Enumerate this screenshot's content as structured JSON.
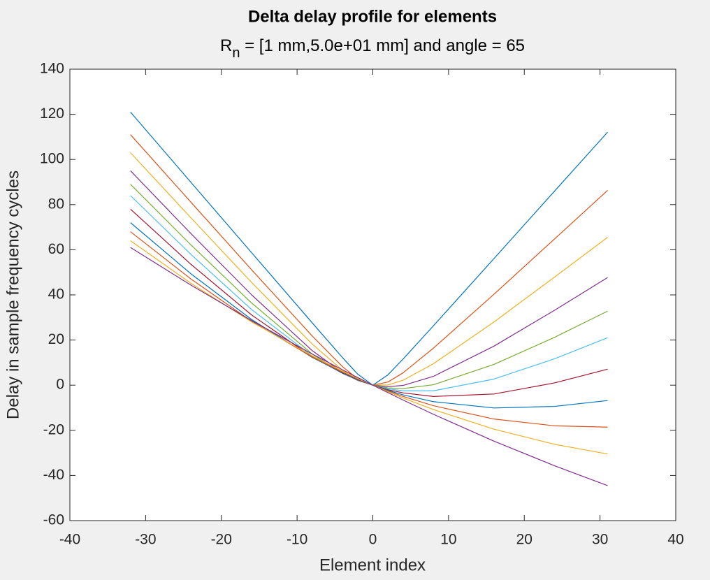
{
  "chart_data": {
    "type": "line",
    "title": "Delta delay profile for elements",
    "subtitle": [
      "R",
      "n",
      " = [1 mm,5.0e+01 mm] and angle = 65"
    ],
    "x_label": "Element index",
    "y_label": "Delay in sample frequency cycles",
    "xlim": [
      -40,
      40
    ],
    "xticks": [
      -40,
      -30,
      -20,
      -10,
      0,
      10,
      20,
      30,
      40
    ],
    "ylim": [
      -60,
      140
    ],
    "yticks": [
      -60,
      -40,
      -20,
      0,
      20,
      40,
      60,
      80,
      100,
      120,
      140
    ],
    "grid": false,
    "x": [
      -32,
      -24,
      -16,
      -8,
      -4,
      -2,
      0,
      2,
      4,
      8,
      16,
      24,
      31
    ],
    "series": [
      {
        "color": "#0072BD",
        "values": [
          121.0,
          89.8,
          58.7,
          27.6,
          12.2,
          4.9,
          0,
          4.6,
          11.6,
          26.3,
          56.1,
          86.0,
          112.1
        ]
      },
      {
        "color": "#D95319",
        "values": [
          111.0,
          81.0,
          51.1,
          21.8,
          8.2,
          2.8,
          0,
          1.4,
          5.5,
          16.4,
          40.3,
          64.8,
          86.3
        ]
      },
      {
        "color": "#EDB120",
        "values": [
          103.0,
          74.1,
          45.5,
          18.2,
          6.6,
          2.3,
          0,
          0.1,
          2.2,
          9.5,
          28.0,
          47.9,
          65.5
        ]
      },
      {
        "color": "#7E2F8E",
        "values": [
          95.0,
          67.1,
          40.0,
          15.3,
          5.6,
          2.1,
          0,
          -0.7,
          -0.1,
          3.9,
          17.3,
          33.2,
          47.7
        ]
      },
      {
        "color": "#77AC30",
        "values": [
          89.0,
          62.1,
          36.4,
          13.8,
          5.3,
          2.2,
          0,
          -1.2,
          -1.5,
          0.2,
          9.2,
          21.2,
          32.8
        ]
      },
      {
        "color": "#4DBEEE",
        "values": [
          84.0,
          57.9,
          33.5,
          12.9,
          5.2,
          2.3,
          0,
          -1.6,
          -2.5,
          -2.5,
          2.7,
          11.7,
          21.0
        ]
      },
      {
        "color": "#A2142F",
        "values": [
          78.0,
          53.5,
          31.1,
          12.5,
          5.3,
          2.4,
          0,
          -2.0,
          -3.4,
          -5.0,
          -3.9,
          1.0,
          7.1
        ]
      },
      {
        "color": "#0072BD",
        "values": [
          72.0,
          49.3,
          29.1,
          12.3,
          5.5,
          2.6,
          0,
          -2.3,
          -4.3,
          -7.3,
          -10.1,
          -9.4,
          -6.8
        ]
      },
      {
        "color": "#D95319",
        "values": [
          68.0,
          47.0,
          28.3,
          12.5,
          5.8,
          2.8,
          0,
          -2.6,
          -5.0,
          -9.1,
          -15.0,
          -18.0,
          -18.6
        ]
      },
      {
        "color": "#EDB120",
        "values": [
          64.0,
          45.1,
          28.0,
          13.0,
          6.2,
          3.0,
          0,
          -2.9,
          -5.7,
          -10.8,
          -19.5,
          -26.2,
          -30.5
        ]
      },
      {
        "color": "#7E2F8E",
        "values": [
          61.0,
          44.3,
          28.6,
          13.8,
          6.8,
          3.4,
          0,
          -3.3,
          -6.6,
          -12.9,
          -24.8,
          -35.7,
          -44.5
        ]
      }
    ]
  }
}
